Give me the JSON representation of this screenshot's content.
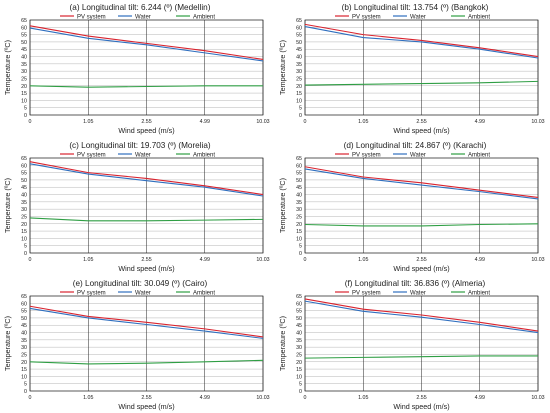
{
  "colors": {
    "pv": "#d9232e",
    "water": "#2f6fbf",
    "ambient": "#2f9e44",
    "grid": "#b5b5b5",
    "frame": "#222222"
  },
  "legend_labels": [
    "PV system",
    "Water",
    "Ambient"
  ],
  "chart_data": [
    {
      "type": "line",
      "title": "(a) Longitudinal tilt: 6.244 (º) (Medellin)",
      "xlabel": "Wind speed (m/s)",
      "ylabel": "Temperature (ºC)",
      "categories": [
        "0",
        "1.05",
        "2.55",
        "4.99",
        "10.03"
      ],
      "ylim": [
        0,
        65
      ],
      "yticks": [
        0,
        5,
        10,
        15,
        20,
        25,
        30,
        35,
        40,
        45,
        50,
        55,
        60,
        65
      ],
      "grid": true,
      "legend_position": "top",
      "series": [
        {
          "name": "PV system",
          "values": [
            61,
            54,
            49,
            44,
            38
          ]
        },
        {
          "name": "Water",
          "values": [
            59.5,
            52.5,
            48,
            42.5,
            37
          ]
        },
        {
          "name": "Ambient",
          "values": [
            20,
            19,
            19.5,
            20,
            20
          ]
        }
      ]
    },
    {
      "type": "line",
      "title": "(b) Longitudinal tilt: 13.754 (º) (Bangkok)",
      "xlabel": "Wind speed (m/s)",
      "ylabel": "Temperature (ºC)",
      "categories": [
        "0",
        "1.05",
        "2.55",
        "4.99",
        "10.03"
      ],
      "ylim": [
        0,
        65
      ],
      "yticks": [
        0,
        5,
        10,
        15,
        20,
        25,
        30,
        35,
        40,
        45,
        50,
        55,
        60,
        65
      ],
      "grid": true,
      "legend_position": "top",
      "series": [
        {
          "name": "PV system",
          "values": [
            62,
            55,
            51,
            46,
            40
          ]
        },
        {
          "name": "Water",
          "values": [
            60.5,
            53,
            50,
            45,
            39
          ]
        },
        {
          "name": "Ambient",
          "values": [
            20.5,
            21,
            21.5,
            22,
            23
          ]
        }
      ]
    },
    {
      "type": "line",
      "title": "(c) Longitudinal tilt: 19.703 (º) (Morelia)",
      "xlabel": "Wind speed (m/s)",
      "ylabel": "Temperature (ºC)",
      "categories": [
        "0",
        "1.05",
        "2.55",
        "4.99",
        "10.03"
      ],
      "ylim": [
        0,
        65
      ],
      "yticks": [
        0,
        5,
        10,
        15,
        20,
        25,
        30,
        35,
        40,
        45,
        50,
        55,
        60,
        65
      ],
      "grid": true,
      "legend_position": "top",
      "series": [
        {
          "name": "PV system",
          "values": [
            62.5,
            55,
            51,
            46,
            40
          ]
        },
        {
          "name": "Water",
          "values": [
            61,
            54,
            49.5,
            45,
            39
          ]
        },
        {
          "name": "Ambient",
          "values": [
            24,
            22,
            22,
            22.5,
            23
          ]
        }
      ]
    },
    {
      "type": "line",
      "title": "(d) Longitudinal tilt: 24.867 (º) (Karachi)",
      "xlabel": "Wind speed (m/s)",
      "ylabel": "Temperature (ºC)",
      "categories": [
        "0",
        "1.05",
        "2.55",
        "4.99",
        "10.03"
      ],
      "ylim": [
        0,
        65
      ],
      "yticks": [
        0,
        5,
        10,
        15,
        20,
        25,
        30,
        35,
        40,
        45,
        50,
        55,
        60,
        65
      ],
      "grid": true,
      "legend_position": "top",
      "series": [
        {
          "name": "PV system",
          "values": [
            59,
            52,
            48,
            43,
            38
          ]
        },
        {
          "name": "Water",
          "values": [
            57.5,
            51,
            46.5,
            42,
            37
          ]
        },
        {
          "name": "Ambient",
          "values": [
            19.5,
            18.5,
            18.5,
            19.5,
            20
          ]
        }
      ]
    },
    {
      "type": "line",
      "title": "(e) Longitudinal tilt: 30.049 (º) (Cairo)",
      "xlabel": "Wind speed (m/s)",
      "ylabel": "Temperature (ºC)",
      "categories": [
        "0",
        "1.05",
        "2.55",
        "4.99",
        "10.03"
      ],
      "ylim": [
        0,
        65
      ],
      "yticks": [
        0,
        5,
        10,
        15,
        20,
        25,
        30,
        35,
        40,
        45,
        50,
        55,
        60,
        65
      ],
      "grid": true,
      "legend_position": "top",
      "series": [
        {
          "name": "PV system",
          "values": [
            58,
            51,
            47,
            42.5,
            37
          ]
        },
        {
          "name": "Water",
          "values": [
            56.5,
            50,
            45.5,
            41,
            36
          ]
        },
        {
          "name": "Ambient",
          "values": [
            20,
            18.5,
            19,
            20,
            21
          ]
        }
      ]
    },
    {
      "type": "line",
      "title": "(f) Longitudinal tilt: 36.836 (º) (Almeria)",
      "xlabel": "Wind speed (m/s)",
      "ylabel": "Temperature (ºC)",
      "categories": [
        "0",
        "1.05",
        "2.55",
        "4.99",
        "10.03"
      ],
      "ylim": [
        0,
        65
      ],
      "yticks": [
        0,
        5,
        10,
        15,
        20,
        25,
        30,
        35,
        40,
        45,
        50,
        55,
        60,
        65
      ],
      "grid": true,
      "legend_position": "top",
      "series": [
        {
          "name": "PV system",
          "values": [
            63,
            56,
            52,
            47,
            41
          ]
        },
        {
          "name": "Water",
          "values": [
            61.5,
            54.5,
            50.5,
            45.5,
            40
          ]
        },
        {
          "name": "Ambient",
          "values": [
            22.5,
            23,
            23.5,
            24,
            24
          ]
        }
      ]
    }
  ]
}
